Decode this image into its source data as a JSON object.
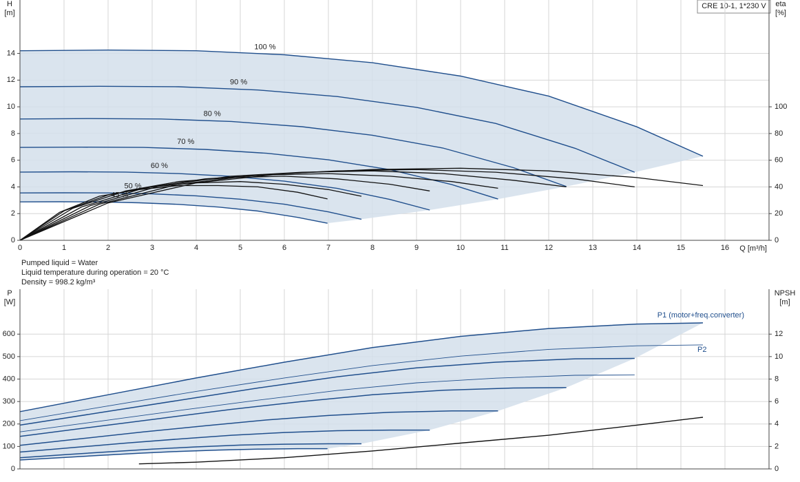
{
  "chart_data": [
    {
      "type": "line",
      "model": "CRE 10-1, 1*230 V",
      "y_label": "H",
      "y_unit": "[m]",
      "y2_label": "eta",
      "y2_unit": "[%]",
      "x_label": "Q [m³/h]",
      "annotations": [
        "Pumped liquid = Water",
        "Liquid temperature during operation = 20 °C",
        "Density = 998.2 kg/m³"
      ],
      "xlim": [
        0,
        17
      ],
      "xticks": [
        0,
        1,
        2,
        3,
        4,
        5,
        6,
        7,
        8,
        9,
        10,
        11,
        12,
        13,
        14,
        15,
        16
      ],
      "ylim": [
        0,
        18
      ],
      "yticks": [
        0,
        2,
        4,
        6,
        8,
        10,
        12,
        14
      ],
      "y2lim": [
        0,
        180
      ],
      "y2ticks": [
        0,
        20,
        40,
        60,
        80,
        100
      ],
      "grid": true,
      "region_color": "#d3dfeb",
      "series": [
        {
          "name": "100 %",
          "color": "#1f4e8c",
          "x": [
            0,
            2,
            4,
            6,
            8,
            10,
            12,
            14,
            15.5
          ],
          "values": [
            14.2,
            14.25,
            14.2,
            13.9,
            13.3,
            12.3,
            10.8,
            8.5,
            6.3
          ]
        },
        {
          "name": "90 %",
          "color": "#1f4e8c",
          "x": [
            0,
            1.8,
            3.6,
            5.4,
            7.2,
            9,
            10.8,
            12.6,
            13.95
          ],
          "values": [
            11.5,
            11.54,
            11.5,
            11.26,
            10.77,
            9.96,
            8.75,
            6.89,
            5.1
          ]
        },
        {
          "name": "80 %",
          "color": "#1f4e8c",
          "x": [
            0,
            1.6,
            3.2,
            4.8,
            6.4,
            8,
            9.6,
            11.2,
            12.4
          ],
          "values": [
            9.09,
            9.12,
            9.09,
            8.9,
            8.51,
            7.87,
            6.91,
            5.44,
            4.03
          ]
        },
        {
          "name": "70 %",
          "color": "#1f4e8c",
          "x": [
            0,
            1.4,
            2.8,
            4.2,
            5.6,
            7,
            8.4,
            9.8,
            10.85
          ],
          "values": [
            6.96,
            6.98,
            6.96,
            6.81,
            6.52,
            6.03,
            5.29,
            4.17,
            3.09
          ]
        },
        {
          "name": "60 %",
          "color": "#1f4e8c",
          "x": [
            0,
            1.2,
            2.4,
            3.6,
            4.8,
            6,
            7.2,
            8.4,
            9.3
          ],
          "values": [
            5.11,
            5.13,
            5.11,
            5.0,
            4.79,
            4.43,
            3.89,
            3.06,
            2.27
          ]
        },
        {
          "name": "50 %",
          "color": "#1f4e8c",
          "x": [
            0,
            1,
            2,
            3,
            4,
            5,
            6,
            7,
            7.75
          ],
          "values": [
            3.55,
            3.56,
            3.55,
            3.48,
            3.33,
            3.08,
            2.7,
            2.13,
            1.58
          ]
        },
        {
          "name": "45 %",
          "color": "#1f4e8c",
          "x": [
            0,
            0.9,
            1.8,
            2.7,
            3.6,
            4.5,
            5.4,
            6.3,
            6.98
          ],
          "values": [
            2.88,
            2.89,
            2.88,
            2.81,
            2.69,
            2.49,
            2.19,
            1.72,
            1.28
          ]
        }
      ],
      "eta_series": [
        {
          "axis": "y2",
          "color": "#111111",
          "x": [
            0,
            2,
            4,
            6,
            8,
            10,
            12,
            14,
            15.5
          ],
          "values": [
            0,
            28,
            43,
            50,
            53,
            54,
            52,
            47,
            41
          ]
        },
        {
          "axis": "y2",
          "color": "#111111",
          "x": [
            0,
            1.8,
            3.6,
            5.4,
            7.2,
            9,
            10.8,
            12.6,
            13.95
          ],
          "values": [
            0,
            27,
            42,
            49,
            52,
            53,
            51,
            46,
            40
          ]
        },
        {
          "axis": "y2",
          "color": "#111111",
          "x": [
            0,
            1.6,
            3.2,
            4.8,
            6.4,
            8,
            9.6,
            11.2,
            12.4
          ],
          "values": [
            0,
            26,
            41,
            48,
            51,
            52,
            50,
            45,
            40
          ]
        },
        {
          "axis": "y2",
          "color": "#111111",
          "x": [
            0,
            1.4,
            2.8,
            4.2,
            5.6,
            7,
            8.4,
            9.8,
            10.85
          ],
          "values": [
            0,
            25,
            39,
            46,
            49,
            50,
            48,
            44,
            39
          ]
        },
        {
          "axis": "y2",
          "color": "#111111",
          "x": [
            0,
            1.2,
            2.4,
            3.6,
            4.8,
            6,
            7.2,
            8.4,
            9.3
          ],
          "values": [
            0,
            24,
            37,
            44,
            47,
            48,
            46,
            42,
            37
          ]
        },
        {
          "axis": "y2",
          "color": "#111111",
          "x": [
            0,
            1,
            2,
            3,
            4,
            5,
            6,
            7,
            7.75
          ],
          "values": [
            0,
            22,
            34,
            40,
            43,
            44,
            42,
            38,
            33
          ]
        },
        {
          "axis": "y2",
          "color": "#111111",
          "x": [
            0,
            0.9,
            1.8,
            2.7,
            3.6,
            4.5,
            5.4,
            6.3,
            6.98
          ],
          "values": [
            0,
            21,
            33,
            38,
            41,
            41,
            40,
            36,
            31
          ]
        }
      ]
    },
    {
      "type": "line",
      "y_label": "P",
      "y_unit": "[W]",
      "y2_label": "NPSH",
      "y2_unit": "[m]",
      "xlim": [
        0,
        17
      ],
      "ylim": [
        0,
        800
      ],
      "yticks": [
        0,
        100,
        200,
        300,
        400,
        500,
        600
      ],
      "y2lim": [
        0,
        16
      ],
      "y2ticks": [
        0,
        2,
        4,
        6,
        8,
        10,
        12
      ],
      "grid": true,
      "region_color": "#d3dfeb",
      "p1": {
        "label": "P1 (motor+freq.converter)",
        "color": "#1f4e8c",
        "curves": [
          {
            "x": [
              0,
              2,
              4,
              6,
              8,
              10,
              12,
              14,
              15.5
            ],
            "values": [
              255,
              330,
              405,
              475,
              540,
              590,
              625,
              645,
              650
            ]
          },
          {
            "x": [
              0,
              1.8,
              3.6,
              5.4,
              7.2,
              9,
              10.8,
              12.6,
              13.95
            ],
            "values": [
              195,
              250,
              305,
              360,
              410,
              450,
              475,
              490,
              492
            ]
          },
          {
            "x": [
              0,
              1.6,
              3.2,
              4.8,
              6.4,
              8,
              9.6,
              11.2,
              12.4
            ],
            "values": [
              145,
              185,
              225,
              265,
              300,
              330,
              350,
              360,
              362
            ]
          },
          {
            "x": [
              0,
              1.4,
              2.8,
              4.2,
              5.6,
              7,
              8.4,
              9.8,
              10.85
            ],
            "values": [
              105,
              135,
              165,
              192,
              218,
              238,
              252,
              258,
              258
            ]
          },
          {
            "x": [
              0,
              1.2,
              2.4,
              3.6,
              4.8,
              6,
              7.2,
              8.4,
              9.3
            ],
            "values": [
              75,
              95,
              115,
              133,
              150,
              162,
              170,
              173,
              173
            ]
          },
          {
            "x": [
              0,
              1,
              2,
              3,
              4,
              5,
              6,
              7,
              7.75
            ],
            "values": [
              50,
              63,
              76,
              88,
              98,
              106,
              110,
              112,
              112
            ]
          },
          {
            "x": [
              0,
              0.9,
              1.8,
              2.7,
              3.6,
              4.5,
              5.4,
              6.3,
              6.98
            ],
            "values": [
              40,
              50,
              60,
              70,
              78,
              84,
              88,
              90,
              90
            ]
          }
        ]
      },
      "p2": {
        "label": "P2",
        "color": "#1f4e8c",
        "curves": [
          {
            "x": [
              0,
              2,
              4,
              6,
              8,
              10,
              12,
              14,
              15.5
            ],
            "values": [
              215,
              280,
              345,
              405,
              460,
              502,
              532,
              548,
              552
            ]
          },
          {
            "x": [
              0,
              1.8,
              3.6,
              5.4,
              7.2,
              9,
              10.8,
              12.6,
              13.95
            ],
            "values": [
              165,
              212,
              260,
              306,
              349,
              383,
              404,
              417,
              418
            ]
          }
        ]
      },
      "npsh": {
        "axis": "y2",
        "color": "#111111",
        "x": [
          2.7,
          4,
          6,
          8,
          10,
          12,
          14,
          15.5
        ],
        "values": [
          0.45,
          0.6,
          1.0,
          1.6,
          2.3,
          3.0,
          3.9,
          4.6
        ]
      }
    }
  ]
}
